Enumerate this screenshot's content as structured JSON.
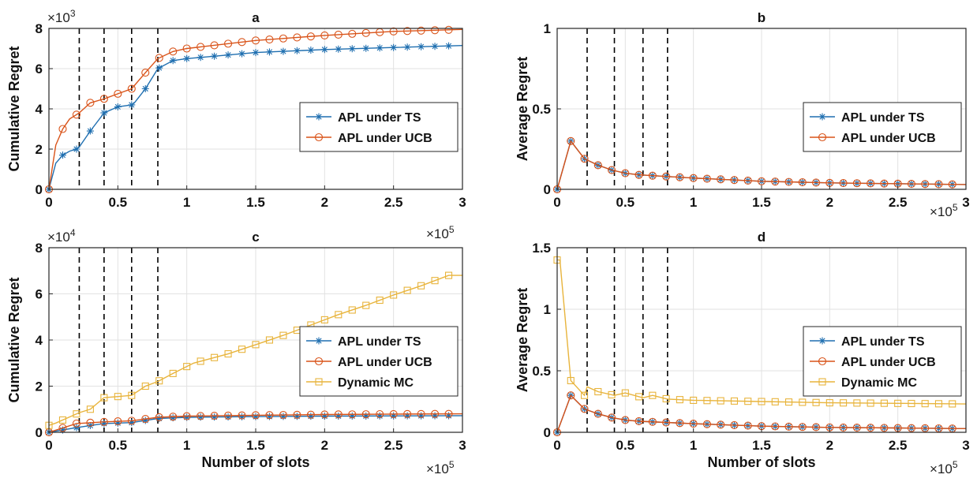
{
  "colors": {
    "ts": "#1f6fb0",
    "ucb": "#d95319",
    "mc": "#e8b43c",
    "vline": "#000000",
    "grid": "#e2e2e2"
  },
  "chart_data": [
    {
      "id": "a",
      "title": "a",
      "type": "line",
      "ylabel": "Cumulative Regret",
      "xlabel": "",
      "xlim": [
        0,
        3
      ],
      "ylim": [
        0,
        8
      ],
      "xticks": [
        "0",
        "0.5",
        "1",
        "1.5",
        "2",
        "2.5",
        "3"
      ],
      "yticks": [
        "0",
        "2",
        "4",
        "6",
        "8"
      ],
      "x_multiplier": "",
      "y_multiplier": "x10^3",
      "vlines": [
        0.22,
        0.4,
        0.6,
        0.79
      ],
      "legend": "right-middle",
      "series": [
        {
          "name": "APL under TS",
          "marker": "star",
          "x": [
            0,
            0.05,
            0.1,
            0.15,
            0.2,
            0.22,
            0.3,
            0.4,
            0.5,
            0.6,
            0.62,
            0.7,
            0.79,
            0.9,
            1,
            1.5,
            2,
            2.5,
            3
          ],
          "y": [
            0,
            1.3,
            1.7,
            1.9,
            2.0,
            2.1,
            2.9,
            3.8,
            4.1,
            4.2,
            4.3,
            5.0,
            6.0,
            6.4,
            6.5,
            6.8,
            6.95,
            7.05,
            7.15
          ]
        },
        {
          "name": "APL under UCB",
          "marker": "circle",
          "x": [
            0,
            0.05,
            0.1,
            0.15,
            0.22,
            0.3,
            0.4,
            0.5,
            0.6,
            0.7,
            0.79,
            0.9,
            1,
            1.5,
            2,
            2.5,
            3
          ],
          "y": [
            0,
            2.2,
            3.0,
            3.5,
            3.8,
            4.3,
            4.5,
            4.75,
            5.0,
            5.8,
            6.5,
            6.85,
            7.0,
            7.4,
            7.65,
            7.85,
            7.95
          ]
        }
      ]
    },
    {
      "id": "b",
      "title": "b",
      "type": "line",
      "ylabel": "Average Regret",
      "xlabel": "",
      "xlim": [
        0,
        3
      ],
      "ylim": [
        0,
        1
      ],
      "xticks": [
        "0",
        "0.5",
        "1",
        "1.5",
        "2",
        "2.5",
        "3"
      ],
      "yticks": [
        "0",
        "0.5",
        "1"
      ],
      "x_multiplier": "x10^5",
      "y_multiplier": "",
      "vlines": [
        0.22,
        0.42,
        0.63,
        0.81
      ],
      "legend": "right-middle",
      "series": [
        {
          "name": "APL under TS",
          "marker": "star",
          "x": [
            0,
            0.1,
            0.2,
            0.3,
            0.4,
            0.5,
            0.6,
            0.8,
            1,
            1.5,
            2,
            2.5,
            3
          ],
          "y": [
            0,
            0.3,
            0.19,
            0.15,
            0.12,
            0.1,
            0.09,
            0.08,
            0.07,
            0.05,
            0.04,
            0.035,
            0.03
          ]
        },
        {
          "name": "APL under UCB",
          "marker": "circle",
          "x": [
            0,
            0.1,
            0.2,
            0.3,
            0.4,
            0.5,
            0.6,
            0.8,
            1,
            1.5,
            2,
            2.5,
            3
          ],
          "y": [
            0,
            0.3,
            0.19,
            0.15,
            0.12,
            0.1,
            0.09,
            0.08,
            0.07,
            0.05,
            0.04,
            0.035,
            0.03
          ]
        }
      ]
    },
    {
      "id": "c",
      "title": "c",
      "type": "line",
      "ylabel": "Cumulative Regret",
      "xlabel": "Number of slots",
      "xlim": [
        0,
        3
      ],
      "ylim": [
        0,
        8
      ],
      "xticks": [
        "0",
        "0.5",
        "1",
        "1.5",
        "2",
        "2.5",
        "3"
      ],
      "yticks": [
        "0",
        "2",
        "4",
        "6",
        "8"
      ],
      "x_multiplier": "x10^5",
      "y_multiplier": "x10^4",
      "vlines": [
        0.22,
        0.4,
        0.6,
        0.79
      ],
      "legend": "right-middle",
      "series": [
        {
          "name": "APL under TS",
          "marker": "star",
          "x": [
            0,
            0.2,
            0.4,
            0.6,
            0.79,
            1,
            1.5,
            2,
            2.5,
            3
          ],
          "y": [
            0,
            0.2,
            0.38,
            0.42,
            0.6,
            0.65,
            0.68,
            0.7,
            0.71,
            0.72
          ]
        },
        {
          "name": "APL under UCB",
          "marker": "circle",
          "x": [
            0,
            0.2,
            0.4,
            0.6,
            0.79,
            1,
            1.5,
            2,
            2.5,
            3
          ],
          "y": [
            0,
            0.38,
            0.45,
            0.5,
            0.65,
            0.7,
            0.74,
            0.77,
            0.79,
            0.8
          ]
        },
        {
          "name": "Dynamic MC",
          "marker": "square",
          "x": [
            0,
            0.05,
            0.22,
            0.3,
            0.4,
            0.5,
            0.6,
            0.7,
            0.79,
            0.9,
            1.05,
            1.3,
            1.5,
            1.7,
            1.9,
            2.1,
            2.3,
            2.5,
            2.7,
            2.9,
            3
          ],
          "y": [
            0.3,
            0.4,
            0.85,
            1.0,
            1.5,
            1.55,
            1.6,
            2.0,
            2.2,
            2.55,
            3.0,
            3.4,
            3.8,
            4.2,
            4.65,
            5.1,
            5.5,
            5.95,
            6.35,
            6.8,
            6.8
          ]
        }
      ]
    },
    {
      "id": "d",
      "title": "d",
      "type": "line",
      "ylabel": "Average Regret",
      "xlabel": "Number of slots",
      "xlim": [
        0,
        3
      ],
      "ylim": [
        0,
        1.5
      ],
      "xticks": [
        "0",
        "0.5",
        "1",
        "1.5",
        "2",
        "2.5",
        "3"
      ],
      "yticks": [
        "0",
        "0.5",
        "1",
        "1.5"
      ],
      "x_multiplier": "x10^5",
      "y_multiplier": "",
      "vlines": [
        0.22,
        0.42,
        0.63,
        0.81
      ],
      "legend": "right-middle",
      "series": [
        {
          "name": "APL under TS",
          "marker": "star",
          "x": [
            0,
            0.1,
            0.2,
            0.3,
            0.4,
            0.5,
            0.6,
            0.8,
            1,
            1.5,
            2,
            2.5,
            3
          ],
          "y": [
            0,
            0.3,
            0.19,
            0.15,
            0.12,
            0.1,
            0.09,
            0.08,
            0.07,
            0.05,
            0.04,
            0.035,
            0.03
          ]
        },
        {
          "name": "APL under UCB",
          "marker": "circle",
          "x": [
            0,
            0.1,
            0.2,
            0.3,
            0.4,
            0.5,
            0.6,
            0.8,
            1,
            1.5,
            2,
            2.5,
            3
          ],
          "y": [
            0,
            0.3,
            0.19,
            0.15,
            0.12,
            0.1,
            0.09,
            0.08,
            0.07,
            0.05,
            0.04,
            0.035,
            0.03
          ]
        },
        {
          "name": "Dynamic MC",
          "marker": "square",
          "x": [
            0,
            0.02,
            0.1,
            0.2,
            0.22,
            0.3,
            0.42,
            0.5,
            0.63,
            0.7,
            0.81,
            1,
            1.5,
            2,
            2.5,
            3
          ],
          "y": [
            1.4,
            1.4,
            0.42,
            0.3,
            0.37,
            0.33,
            0.3,
            0.32,
            0.28,
            0.3,
            0.27,
            0.26,
            0.25,
            0.24,
            0.235,
            0.23
          ]
        }
      ]
    }
  ]
}
